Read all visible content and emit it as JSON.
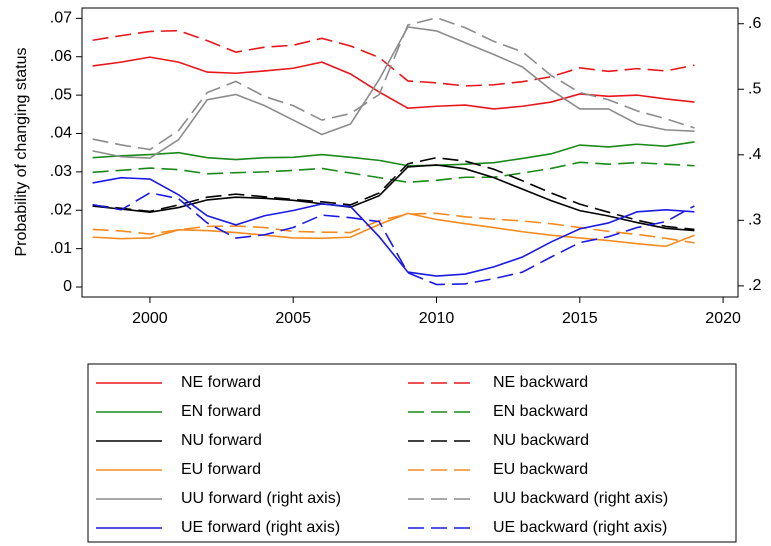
{
  "chart_data": {
    "type": "line",
    "y_label": "Probability of changing status",
    "x": [
      1998,
      1999,
      2000,
      2001,
      2002,
      2003,
      2004,
      2005,
      2006,
      2007,
      2008,
      2009,
      2010,
      2011,
      2012,
      2013,
      2014,
      2015,
      2016,
      2017,
      2018,
      2019
    ],
    "xlim": [
      1997.63,
      2020.52
    ],
    "xticks": [
      2000,
      2005,
      2010,
      2015,
      2020
    ],
    "ylim": [
      -0.0026,
      0.0727
    ],
    "yticks": [
      0,
      {
        "value": 0.01,
        "label": ".01"
      },
      {
        "value": 0.02,
        "label": ".02"
      },
      {
        "value": 0.03,
        "label": ".03"
      },
      {
        "value": 0.04,
        "label": ".04"
      },
      {
        "value": 0.05,
        "label": ".05"
      },
      {
        "value": 0.06,
        "label": ".06"
      },
      {
        "value": 0.07,
        "label": ".07"
      }
    ],
    "y2lim": [
      0.183,
      0.624
    ],
    "y2ticks": [
      {
        "value": 0.2,
        "label": ".2"
      },
      {
        "value": 0.3,
        "label": ".3"
      },
      {
        "value": 0.4,
        "label": ".4"
      },
      {
        "value": 0.5,
        "label": ".5"
      },
      {
        "value": 0.6,
        "label": ".6"
      }
    ],
    "series": [
      {
        "name": "NE forward",
        "color": "#e8161b",
        "dashed": false,
        "values": [
          0.0576,
          0.0586,
          0.0599,
          0.0586,
          0.056,
          0.0557,
          0.0563,
          0.057,
          0.0586,
          0.0555,
          0.0508,
          0.0466,
          0.0471,
          0.0474,
          0.0464,
          0.0471,
          0.0482,
          0.0503,
          0.0497,
          0.05,
          0.049,
          0.0482
        ]
      },
      {
        "name": "NE backward",
        "color": "#e8161b",
        "dashed": true,
        "values": [
          0.0643,
          0.0655,
          0.0666,
          0.0668,
          0.0642,
          0.0612,
          0.0625,
          0.063,
          0.0648,
          0.0628,
          0.0598,
          0.0537,
          0.0532,
          0.0524,
          0.0527,
          0.0535,
          0.0548,
          0.0571,
          0.0562,
          0.0569,
          0.0563,
          0.0578
        ]
      },
      {
        "name": "EN forward",
        "color": "#1a8a1a",
        "dashed": false,
        "values": [
          0.0337,
          0.0342,
          0.0345,
          0.035,
          0.0337,
          0.0332,
          0.0337,
          0.0338,
          0.0345,
          0.0338,
          0.033,
          0.0316,
          0.0317,
          0.032,
          0.0324,
          0.0335,
          0.0347,
          0.037,
          0.0365,
          0.0372,
          0.0367,
          0.0378
        ]
      },
      {
        "name": "EN backward",
        "color": "#1a8a1a",
        "dashed": true,
        "values": [
          0.0299,
          0.0304,
          0.031,
          0.0306,
          0.0295,
          0.0298,
          0.03,
          0.0304,
          0.0309,
          0.0297,
          0.0285,
          0.0273,
          0.0278,
          0.0286,
          0.0286,
          0.0297,
          0.0309,
          0.0325,
          0.032,
          0.0324,
          0.032,
          0.0316
        ]
      },
      {
        "name": "NU forward",
        "color": "#000000",
        "dashed": false,
        "values": [
          0.0211,
          0.0203,
          0.0195,
          0.0207,
          0.0227,
          0.0234,
          0.0231,
          0.0226,
          0.0217,
          0.0208,
          0.0238,
          0.0313,
          0.0318,
          0.0308,
          0.0285,
          0.0255,
          0.0225,
          0.0199,
          0.0185,
          0.0168,
          0.0153,
          0.0147
        ]
      },
      {
        "name": "NU backward",
        "color": "#000000",
        "dashed": true,
        "values": [
          0.0213,
          0.0205,
          0.0197,
          0.0214,
          0.0234,
          0.0242,
          0.0235,
          0.0228,
          0.0222,
          0.0214,
          0.0245,
          0.0321,
          0.0337,
          0.0328,
          0.0307,
          0.0277,
          0.0245,
          0.0216,
          0.0195,
          0.0174,
          0.0158,
          0.015
        ]
      },
      {
        "name": "EU forward",
        "color": "#f58b1e",
        "dashed": false,
        "values": [
          0.013,
          0.0126,
          0.0128,
          0.0149,
          0.0147,
          0.0142,
          0.0135,
          0.0128,
          0.0127,
          0.013,
          0.0163,
          0.0192,
          0.0176,
          0.0165,
          0.0155,
          0.0144,
          0.0135,
          0.0128,
          0.0121,
          0.0113,
          0.0106,
          0.0135
        ]
      },
      {
        "name": "EU backward",
        "color": "#f58b1e",
        "dashed": true,
        "values": [
          0.015,
          0.0146,
          0.0138,
          0.0149,
          0.0158,
          0.0159,
          0.0155,
          0.0145,
          0.0143,
          0.0142,
          0.0173,
          0.019,
          0.0192,
          0.0183,
          0.0177,
          0.0172,
          0.0165,
          0.0155,
          0.0145,
          0.0137,
          0.0127,
          0.0115
        ]
      },
      {
        "name": "UU forward (right axis)",
        "color": "#8c8c8c",
        "dashed": false,
        "axis": "y2",
        "values": [
          0.406,
          0.397,
          0.395,
          0.423,
          0.484,
          0.492,
          0.475,
          0.453,
          0.431,
          0.447,
          0.515,
          0.595,
          0.589,
          0.571,
          0.553,
          0.534,
          0.499,
          0.47,
          0.47,
          0.447,
          0.438,
          0.436
        ]
      },
      {
        "name": "UU backward (right axis)",
        "color": "#8c8c8c",
        "dashed": true,
        "axis": "y2",
        "values": [
          0.424,
          0.415,
          0.408,
          0.437,
          0.495,
          0.512,
          0.489,
          0.475,
          0.453,
          0.463,
          0.492,
          0.598,
          0.609,
          0.594,
          0.573,
          0.557,
          0.521,
          0.495,
          0.484,
          0.467,
          0.455,
          0.441
        ]
      },
      {
        "name": "UE forward (right axis)",
        "color": "#1a1ae6",
        "dashed": false,
        "axis": "y2",
        "values": [
          0.357,
          0.365,
          0.363,
          0.339,
          0.307,
          0.293,
          0.307,
          0.315,
          0.325,
          0.321,
          0.275,
          0.221,
          0.215,
          0.218,
          0.229,
          0.244,
          0.267,
          0.287,
          0.296,
          0.313,
          0.316,
          0.313
        ]
      },
      {
        "name": "UE backward (right axis)",
        "color": "#1a1ae6",
        "dashed": true,
        "axis": "y2",
        "values": [
          0.324,
          0.316,
          0.342,
          0.333,
          0.296,
          0.273,
          0.278,
          0.289,
          0.308,
          0.304,
          0.298,
          0.22,
          0.202,
          0.203,
          0.211,
          0.221,
          0.244,
          0.266,
          0.275,
          0.289,
          0.298,
          0.322
        ]
      }
    ]
  }
}
